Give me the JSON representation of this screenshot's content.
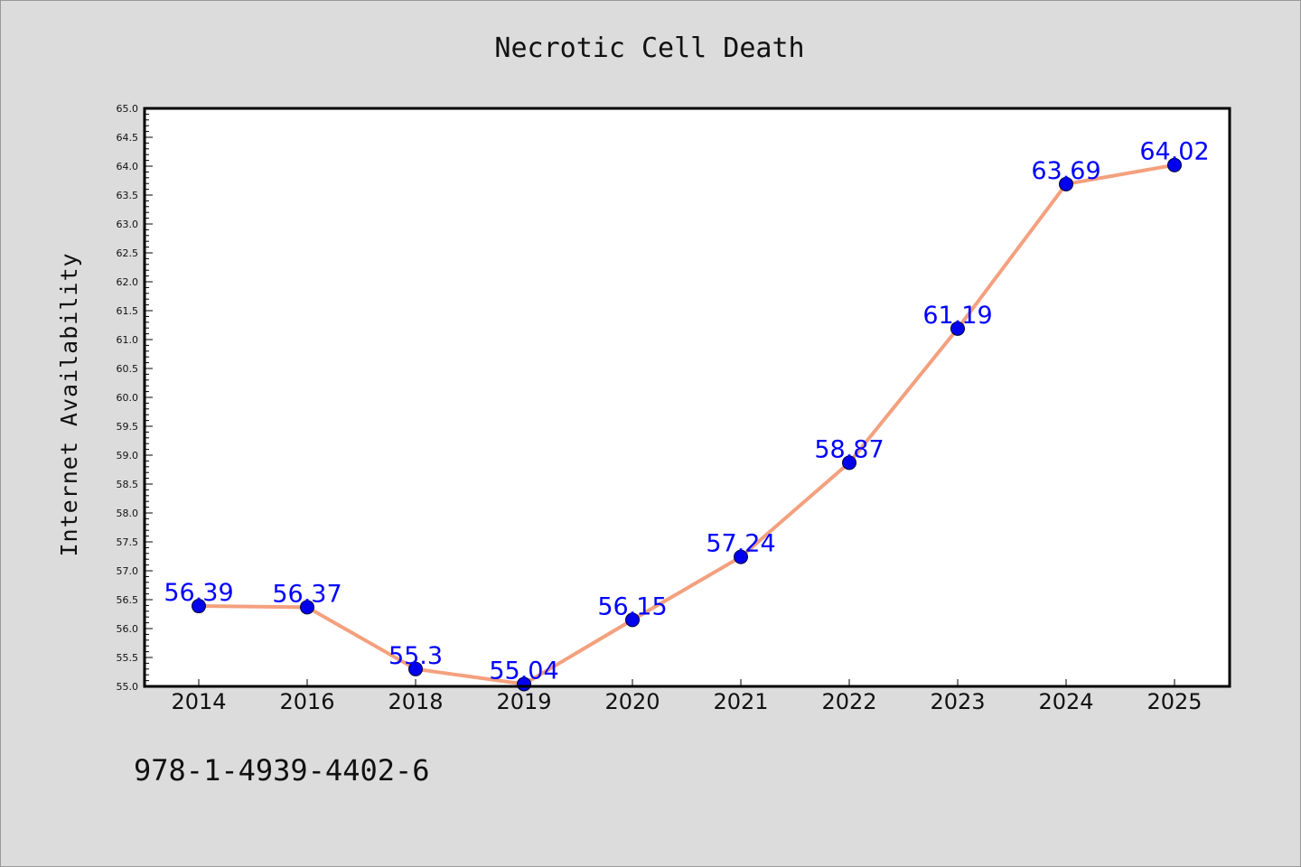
{
  "chart_data": {
    "type": "line",
    "title": "Necrotic Cell Death",
    "xlabel": "",
    "ylabel": "Internet Availability",
    "categories": [
      "2014",
      "2016",
      "2018",
      "2019",
      "2020",
      "2021",
      "2022",
      "2023",
      "2024",
      "2025"
    ],
    "values": [
      56.39,
      56.37,
      55.3,
      55.04,
      56.15,
      57.24,
      58.87,
      61.19,
      63.69,
      64.02
    ],
    "data_labels": [
      "56.39",
      "56.37",
      "55.3",
      "55.04",
      "56.15",
      "57.24",
      "58.87",
      "61.19",
      "63.69",
      "64.02"
    ],
    "ylim": [
      55.0,
      65.0
    ],
    "ytick_labels": [
      "55.0",
      "55.5",
      "56.0",
      "56.5",
      "57.0",
      "57.5",
      "58.0",
      "58.5",
      "59.0",
      "59.5",
      "60.0",
      "60.5",
      "61.0",
      "61.5",
      "62.0",
      "62.5",
      "63.0",
      "63.5",
      "64.0",
      "64.5",
      "65.0"
    ],
    "grid": false,
    "line_color": "#f4a07e",
    "marker_color": "#0000ee",
    "label_color": "#0000ff"
  },
  "footer": {
    "isbn": "978-1-4939-4402-6"
  }
}
